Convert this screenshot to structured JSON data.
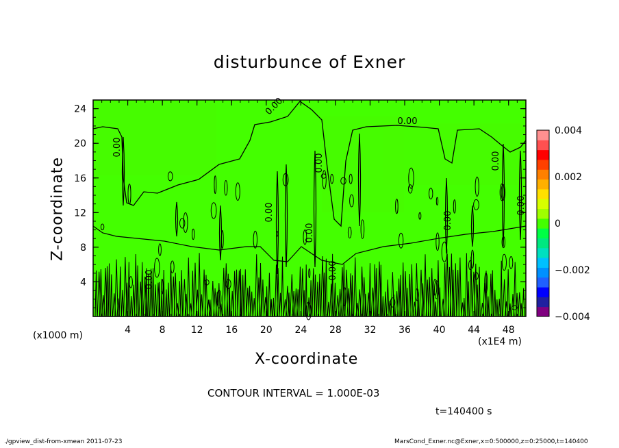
{
  "chart_data": {
    "type": "heatmap",
    "title": "disturbunce of Exner",
    "xlabel": "X-coordinate",
    "ylabel": "Z-coordinate",
    "x_unit_label": "(x1000 m)",
    "x_scale_label": "(x1E4 m)",
    "x_ticks": [
      "4",
      "8",
      "12",
      "16",
      "20",
      "24",
      "28",
      "32",
      "36",
      "40",
      "44",
      "48"
    ],
    "y_ticks": [
      "4",
      "8",
      "12",
      "16",
      "20",
      "24"
    ],
    "xlim": [
      0,
      50
    ],
    "ylim": [
      0,
      25
    ],
    "field_value": 0.0,
    "contour_labels": [
      "0.00",
      "0.00",
      "0.00",
      "0.00",
      "0.00",
      "0.00",
      "0.00",
      "0.00",
      "0.00",
      "0.00",
      "0.00"
    ],
    "colorbar": {
      "labels": [
        "0.004",
        "0.002",
        "0",
        "−0.002",
        "−0.004"
      ],
      "range": [
        -0.004,
        0.004
      ],
      "colors": [
        "#800080",
        "#2020a0",
        "#0000ff",
        "#2060ff",
        "#0090ff",
        "#00c0ff",
        "#00e0c0",
        "#00e880",
        "#00ff44",
        "#44ff00",
        "#a0ff00",
        "#d8ff00",
        "#ffe000",
        "#ffb000",
        "#ff8000",
        "#ff4000",
        "#ff0000",
        "#ff5050",
        "#ff9090"
      ]
    }
  },
  "annotations": {
    "contour_interval": "CONTOUR INTERVAL = 1.000E-03",
    "time": "t=140400 s",
    "footer_left": "./gpview_dist-from-xmean  2011-07-23",
    "footer_right": "MarsCond_Exner.nc@Exner,x=0:500000,z=0:25000,t=140400"
  }
}
